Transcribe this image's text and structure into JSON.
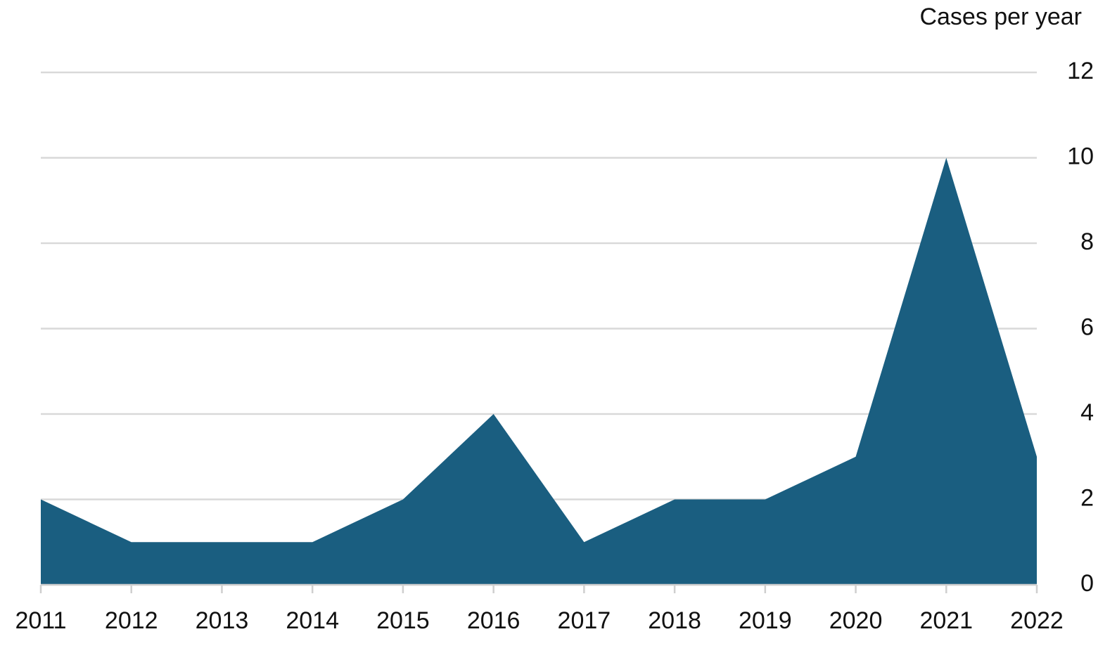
{
  "chart_data": {
    "type": "area",
    "y_label": "Cases per year",
    "x": [
      2011,
      2012,
      2013,
      2014,
      2015,
      2016,
      2017,
      2018,
      2019,
      2020,
      2021,
      2022
    ],
    "values": [
      2,
      1,
      1,
      1,
      2,
      4,
      1,
      2,
      2,
      3,
      10,
      3
    ],
    "color": "#1a5e80",
    "xlim": [
      2011,
      2022
    ],
    "xticks": [
      2011,
      2012,
      2013,
      2014,
      2015,
      2016,
      2017,
      2018,
      2019,
      2020,
      2021,
      2022
    ],
    "ylim": [
      0,
      12
    ],
    "yticks": [
      0,
      2,
      4,
      6,
      8,
      10,
      12
    ],
    "grid": true
  }
}
